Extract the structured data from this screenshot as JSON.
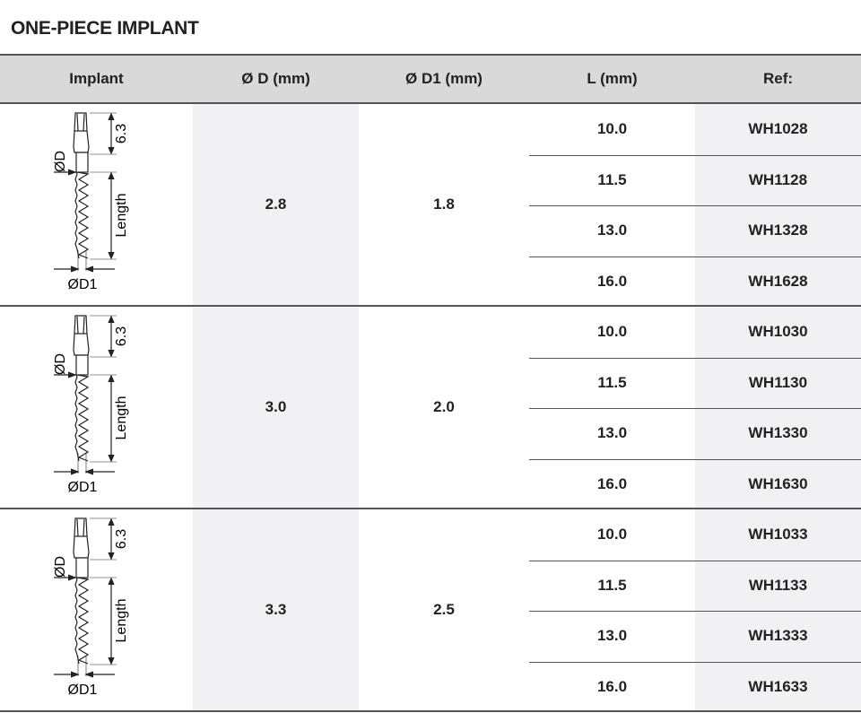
{
  "title": "ONE-PIECE IMPLANT",
  "columns": [
    "Implant",
    "Ø D (mm)",
    "Ø D1 (mm)",
    "L (mm)",
    "Ref:"
  ],
  "drawing_labels": {
    "top": "6.3",
    "d": "ØD",
    "length": "Length",
    "d1": "ØD1"
  },
  "groups": [
    {
      "d": "2.8",
      "d1": "1.8",
      "rows": [
        {
          "l": "10.0",
          "ref": "WH1028"
        },
        {
          "l": "11.5",
          "ref": "WH1128"
        },
        {
          "l": "13.0",
          "ref": "WH1328"
        },
        {
          "l": "16.0",
          "ref": "WH1628"
        }
      ]
    },
    {
      "d": "3.0",
      "d1": "2.0",
      "rows": [
        {
          "l": "10.0",
          "ref": "WH1030"
        },
        {
          "l": "11.5",
          "ref": "WH1130"
        },
        {
          "l": "13.0",
          "ref": "WH1330"
        },
        {
          "l": "16.0",
          "ref": "WH1630"
        }
      ]
    },
    {
      "d": "3.3",
      "d1": "2.5",
      "rows": [
        {
          "l": "10.0",
          "ref": "WH1033"
        },
        {
          "l": "11.5",
          "ref": "WH1133"
        },
        {
          "l": "13.0",
          "ref": "WH1333"
        },
        {
          "l": "16.0",
          "ref": "WH1633"
        }
      ]
    }
  ]
}
